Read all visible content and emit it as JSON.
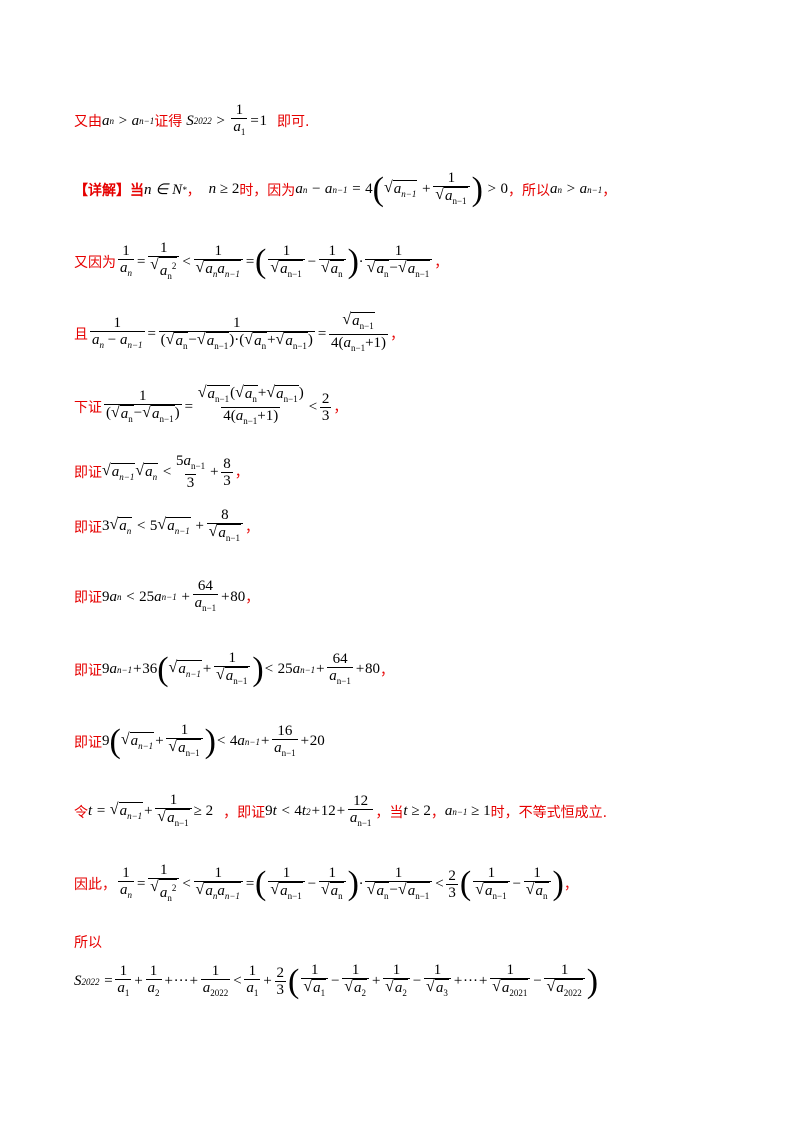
{
  "l1": {
    "a": "又由",
    "b": "证得",
    "c": "即可."
  },
  "l2": {
    "a": "【详解】当",
    "b": "，",
    "c": "时，因为",
    "d": "，所以",
    "e": "，"
  },
  "l3": {
    "a": "又因为",
    "e": "，"
  },
  "l4": {
    "a": "且",
    "e": "，"
  },
  "l5": {
    "a": "下证",
    "e": "，"
  },
  "l6": {
    "a": "即证",
    "e": "，"
  },
  "l7": {
    "a": "即证",
    "e": "，"
  },
  "l8": {
    "a": "即证",
    "e": "，"
  },
  "l9": {
    "a": "即证",
    "e": "，"
  },
  "l10": {
    "a": "即证"
  },
  "l11": {
    "a": "令",
    "b": "，即证",
    "c": "，当",
    "d": "，",
    "e": "时，不等式恒成立."
  },
  "l12": {
    "a": "因此，",
    "e": "，"
  },
  "l13": {
    "a": "所以"
  }
}
